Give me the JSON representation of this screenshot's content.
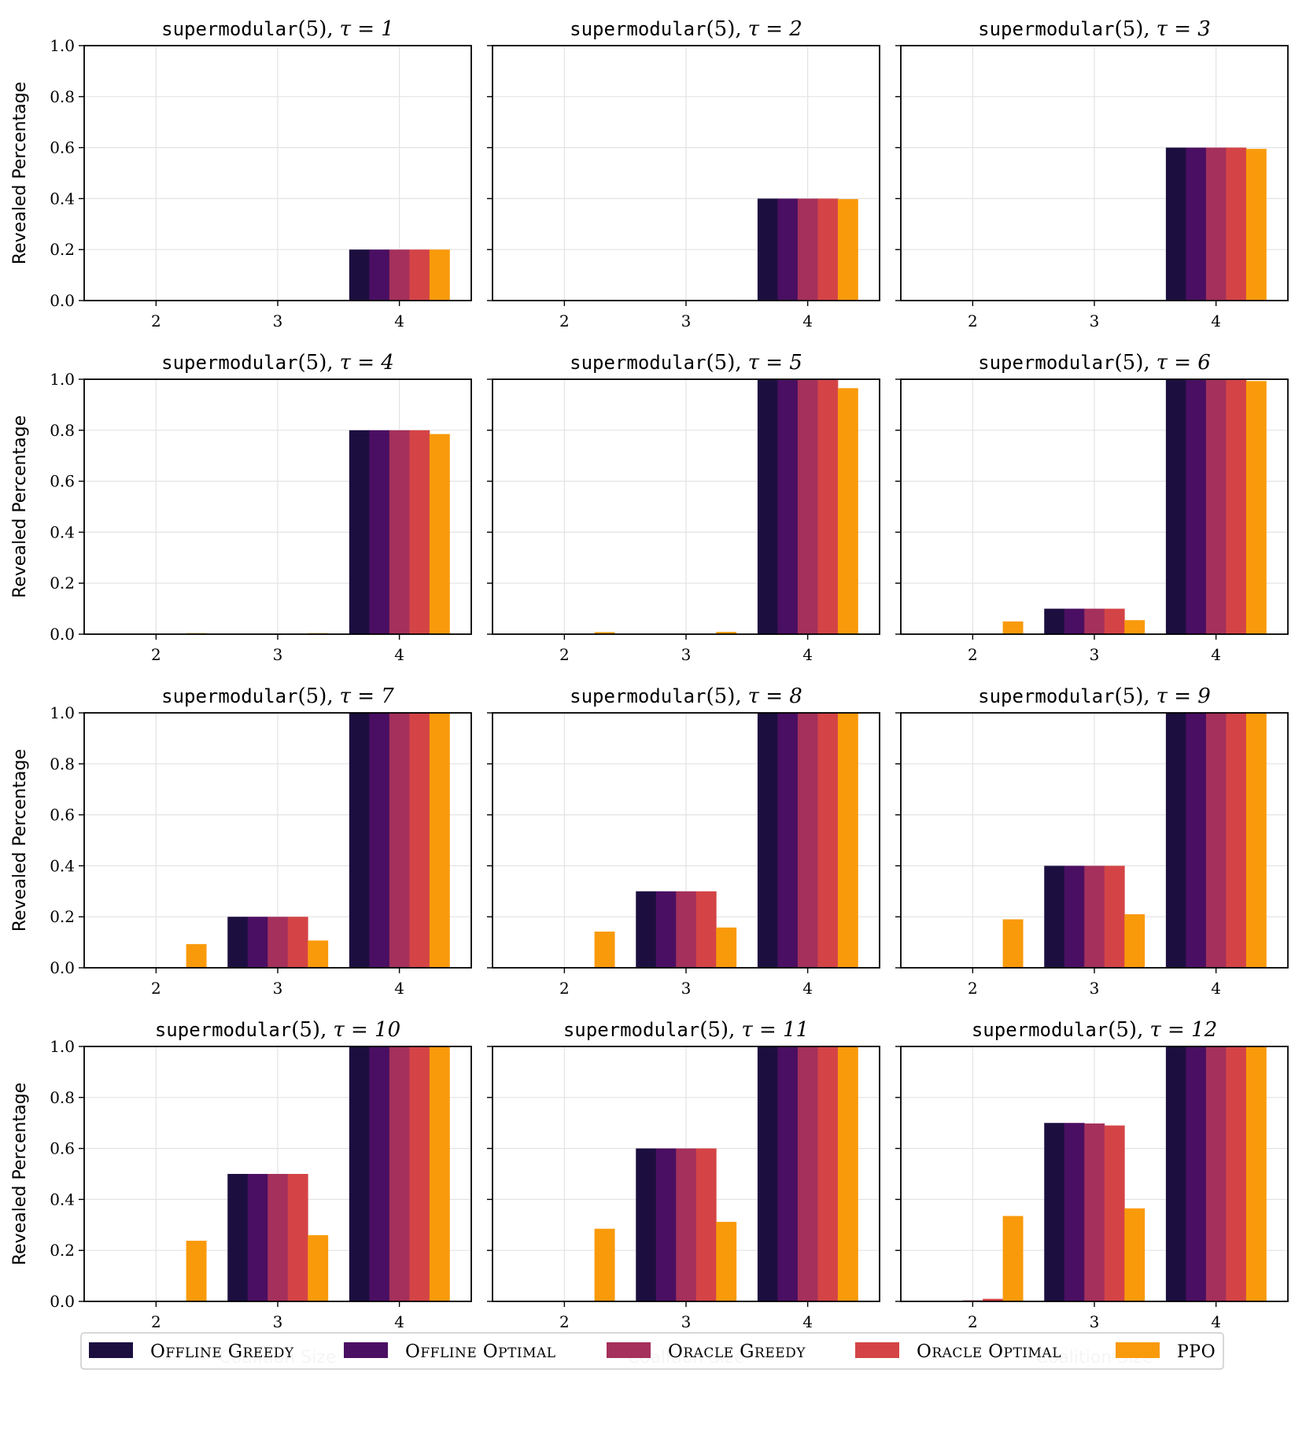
{
  "chart_data": {
    "type": "bar",
    "categories": [
      "2",
      "3",
      "4"
    ],
    "series_meta": [
      {
        "name": "Offline Greedy",
        "color": "#1c0f40"
      },
      {
        "name": "Offline Optimal",
        "color": "#4a0f62"
      },
      {
        "name": "Oracle Greedy",
        "color": "#a4305b"
      },
      {
        "name": "Oracle Optimal",
        "color": "#d44446"
      },
      {
        "name": "PPO",
        "color": "#f99a0b"
      }
    ],
    "yticks": [
      "0.0",
      "0.2",
      "0.4",
      "0.6",
      "0.8",
      "1.0"
    ],
    "ylim": [
      0,
      1
    ],
    "ylabel": "Revealed Percentage",
    "xlabel": "Coalition Size",
    "grid": true,
    "legend_position": "bottom",
    "panels": [
      {
        "title_func": "supermodular",
        "title_arg": "(5),",
        "title_tau": "τ = 1",
        "values": [
          [
            0,
            0,
            0,
            0,
            0
          ],
          [
            0,
            0,
            0,
            0,
            0
          ],
          [
            0.2,
            0.2,
            0.2,
            0.2,
            0.2
          ]
        ]
      },
      {
        "title_func": "supermodular",
        "title_arg": "(5),",
        "title_tau": "τ = 2",
        "values": [
          [
            0,
            0,
            0,
            0,
            0.002
          ],
          [
            0,
            0,
            0,
            0,
            0.002
          ],
          [
            0.4,
            0.4,
            0.4,
            0.4,
            0.398
          ]
        ]
      },
      {
        "title_func": "supermodular",
        "title_arg": "(5),",
        "title_tau": "τ = 3",
        "values": [
          [
            0,
            0,
            0,
            0,
            0.003
          ],
          [
            0,
            0,
            0,
            0,
            0.003
          ],
          [
            0.6,
            0.6,
            0.6,
            0.6,
            0.595
          ]
        ]
      },
      {
        "title_func": "supermodular",
        "title_arg": "(5),",
        "title_tau": "τ = 4",
        "values": [
          [
            0,
            0,
            0,
            0,
            0.004
          ],
          [
            0,
            0,
            0,
            0,
            0.004
          ],
          [
            0.8,
            0.8,
            0.8,
            0.8,
            0.785
          ]
        ]
      },
      {
        "title_func": "supermodular",
        "title_arg": "(5),",
        "title_tau": "τ = 5",
        "values": [
          [
            0,
            0,
            0,
            0,
            0.008
          ],
          [
            0,
            0,
            0,
            0,
            0.009
          ],
          [
            1.0,
            1.0,
            1.0,
            1.0,
            0.965
          ]
        ]
      },
      {
        "title_func": "supermodular",
        "title_arg": "(5),",
        "title_tau": "τ = 6",
        "values": [
          [
            0,
            0,
            0,
            0,
            0.05
          ],
          [
            0.1,
            0.1,
            0.1,
            0.1,
            0.055
          ],
          [
            1.0,
            1.0,
            1.0,
            1.0,
            0.993
          ]
        ]
      },
      {
        "title_func": "supermodular",
        "title_arg": "(5),",
        "title_tau": "τ = 7",
        "values": [
          [
            0,
            0,
            0,
            0,
            0.093
          ],
          [
            0.2,
            0.2,
            0.2,
            0.2,
            0.107
          ],
          [
            1.0,
            1.0,
            1.0,
            1.0,
            1.0
          ]
        ]
      },
      {
        "title_func": "supermodular",
        "title_arg": "(5),",
        "title_tau": "τ = 8",
        "values": [
          [
            0,
            0,
            0,
            0,
            0.142
          ],
          [
            0.3,
            0.3,
            0.3,
            0.3,
            0.158
          ],
          [
            1.0,
            1.0,
            1.0,
            1.0,
            1.0
          ]
        ]
      },
      {
        "title_func": "supermodular",
        "title_arg": "(5),",
        "title_tau": "τ = 9",
        "values": [
          [
            0,
            0,
            0,
            0,
            0.19
          ],
          [
            0.4,
            0.4,
            0.4,
            0.4,
            0.21
          ],
          [
            1.0,
            1.0,
            1.0,
            1.0,
            1.0
          ]
        ]
      },
      {
        "title_func": "supermodular",
        "title_arg": "(5),",
        "title_tau": "τ = 10",
        "values": [
          [
            0,
            0,
            0,
            0,
            0.238
          ],
          [
            0.5,
            0.5,
            0.5,
            0.5,
            0.26
          ],
          [
            1.0,
            1.0,
            1.0,
            1.0,
            1.0
          ]
        ]
      },
      {
        "title_func": "supermodular",
        "title_arg": "(5),",
        "title_tau": "τ = 11",
        "values": [
          [
            0,
            0,
            0,
            0,
            0.285
          ],
          [
            0.6,
            0.6,
            0.6,
            0.6,
            0.312
          ],
          [
            1.0,
            1.0,
            1.0,
            1.0,
            1.0
          ]
        ]
      },
      {
        "title_func": "supermodular",
        "title_arg": "(5),",
        "title_tau": "τ = 12",
        "values": [
          [
            0,
            0,
            0.004,
            0.01,
            0.335
          ],
          [
            0.7,
            0.7,
            0.698,
            0.69,
            0.365
          ],
          [
            1.0,
            1.0,
            1.0,
            1.0,
            1.0
          ]
        ]
      }
    ]
  },
  "legend": {
    "items": [
      {
        "label": "Offline Greedy",
        "color": "#1c0f40"
      },
      {
        "label": "Offline Optimal",
        "color": "#4a0f62"
      },
      {
        "label": "Oracle Greedy",
        "color": "#a4305b"
      },
      {
        "label": "Oracle Optimal",
        "color": "#d44446"
      },
      {
        "label": "PPO",
        "color": "#f99a0b"
      }
    ]
  }
}
